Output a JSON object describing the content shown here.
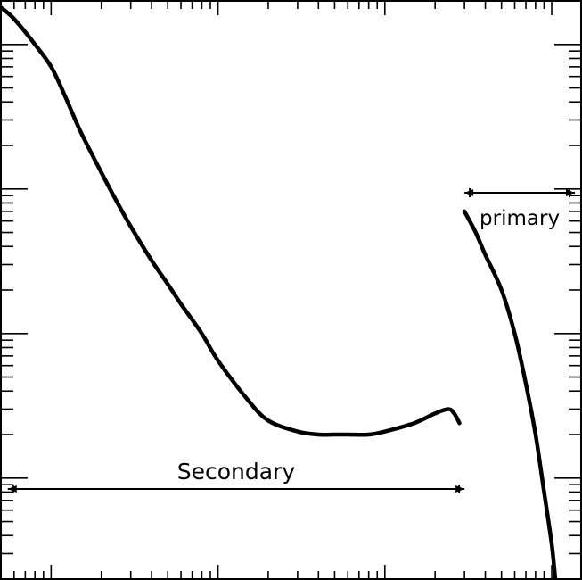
{
  "chart_data": {
    "type": "line",
    "title": "",
    "xlabel": "",
    "ylabel": "",
    "x_scale": "log",
    "y_scale": "log",
    "xlim": [
      0.5,
      1500
    ],
    "ylim": [
      0.02,
      200
    ],
    "grid": false,
    "legend": "none",
    "annotations": [
      {
        "text": "Secondary",
        "range": [
          0.55,
          300
        ]
      },
      {
        "text": "primary",
        "range": [
          300,
          1500
        ]
      }
    ],
    "series": [
      {
        "x": [
          0.5,
          0.6,
          0.8,
          1.0,
          1.2,
          1.5,
          2.0,
          2.5,
          3.0,
          4.0,
          5.0,
          6.0,
          8.0,
          10.0,
          15.0,
          20.0,
          30.0,
          40.0,
          50.0,
          60.0,
          80.0,
          100.0,
          150.0,
          200.0,
          240.0,
          260.0,
          280.0
        ],
        "y": [
          180,
          150,
          100,
          70,
          45,
          25,
          13,
          8,
          5.5,
          3.2,
          2.2,
          1.6,
          1.0,
          0.65,
          0.35,
          0.25,
          0.21,
          0.2,
          0.2,
          0.2,
          0.2,
          0.21,
          0.24,
          0.28,
          0.3,
          0.28,
          0.24
        ]
      },
      {
        "x": [
          300,
          350,
          400,
          500,
          600,
          700,
          800,
          900,
          1000,
          1050
        ],
        "y": [
          7,
          5,
          3.5,
          2.0,
          1.0,
          0.45,
          0.2,
          0.08,
          0.035,
          0.02
        ]
      }
    ]
  }
}
